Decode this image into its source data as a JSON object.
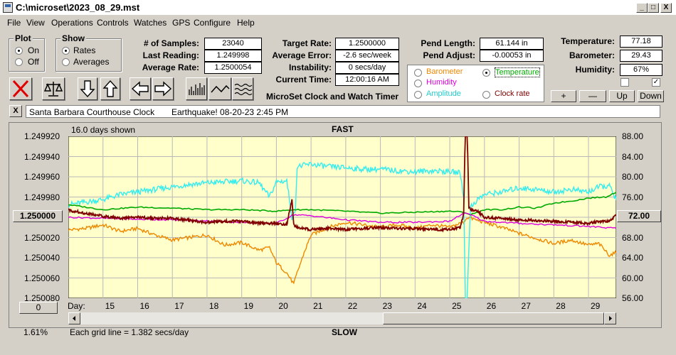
{
  "window": {
    "title": "C:\\microset\\2023_08_29.mst",
    "min_glyph": "_",
    "max_glyph": "□",
    "close_glyph": "X"
  },
  "menu": [
    "File",
    "View",
    "Operations",
    "Controls",
    "Watches",
    "GPS",
    "Configure",
    "Help"
  ],
  "plot_group": {
    "title": "Plot",
    "on": "On",
    "off": "Off",
    "selected": "On"
  },
  "show_group": {
    "title": "Show",
    "rates": "Rates",
    "averages": "Averages",
    "selected": "Rates"
  },
  "stats": {
    "samples_label": "# of Samples:",
    "samples": "23040",
    "last_label": "Last Reading:",
    "last": "1.249998",
    "avg_rate_label": "Average Rate:",
    "avg_rate": "1.2500054",
    "target_label": "Target Rate:",
    "target": "1.2500000",
    "avg_error_label": "Average Error:",
    "avg_error": "-2.6 sec/week",
    "instability_label": "Instability:",
    "instability": "0 secs/day",
    "current_time_label": "Current Time:",
    "current_time": "12:00:16 AM",
    "app_caption": "MicroSet Clock and Watch Timer"
  },
  "pendulum": {
    "length_label": "Pend Length:",
    "length": "61.144 in",
    "adjust_label": "Pend Adjust:",
    "adjust": "-0.00053 in"
  },
  "environment": {
    "temp_label": "Temperature:",
    "temp": "77.18",
    "baro_label": "Barometer:",
    "baro": "29.43",
    "humidity_label": "Humidity:",
    "humidity": "67%"
  },
  "overlay_options": {
    "barometer": "Barometer",
    "temperature": "Temperature",
    "humidity": "Humidity",
    "amplitude": "Amplitude",
    "clock_rate": "Clock rate",
    "selected": "Temperature"
  },
  "scale_buttons": {
    "plus": "+",
    "minus": "—",
    "up": "Up",
    "down": "Down"
  },
  "checkbox_mark": "✓",
  "note": {
    "close": "X",
    "clock_name": "Santa Barbara Courthouse Clock",
    "event": "Earthquake! 08-20-23 2:45 PM"
  },
  "colors": {
    "plot_bg": "#ffffcc",
    "grid": "#b8b8b8",
    "rate": "#800000",
    "temperature": "#00aa00",
    "humidity": "#dd00dd",
    "amplitude": "#33eeee",
    "barometer": "#ee8800"
  },
  "chart_data": {
    "type": "line",
    "days_shown": "16.0 days shown",
    "top_label": "FAST",
    "bottom_label": "SLOW",
    "x_label": "Day:",
    "x_ticks": [
      15,
      16,
      17,
      18,
      19,
      20,
      21,
      22,
      23,
      24,
      25,
      26,
      27,
      28,
      29
    ],
    "xlim": [
      14,
      29.8
    ],
    "left_ticks": [
      "1.249920",
      "1.249940",
      "1.249960",
      "1.249980",
      "1.250000",
      "1.250020",
      "1.250040",
      "1.250060",
      "1.250080"
    ],
    "left_center": "1.250000",
    "right_ticks": [
      "88.00",
      "84.00",
      "80.00",
      "76.00",
      "72.00",
      "68.00",
      "64.00",
      "60.00",
      "56.00"
    ],
    "right_center": "72.00",
    "bottom_left_value": "0",
    "left_footer": "1.61%",
    "grid_note": "Each grid line = 1.382 secs/day",
    "series": [
      {
        "key": "barometer",
        "x": [
          14,
          14.5,
          15,
          15.5,
          16,
          16.5,
          17,
          17.5,
          18,
          18.5,
          19,
          19.5,
          19.8,
          20,
          20.3,
          20.5,
          20.6,
          20.8,
          21,
          21.5,
          22,
          22.5,
          23,
          23.5,
          24,
          24.5,
          25,
          25.3,
          25.4,
          25.5,
          26,
          26.5,
          27,
          27.5,
          28,
          28.5,
          29,
          29.3,
          29.6,
          29.8
        ],
        "y": [
          69.5,
          69.8,
          70.5,
          69.2,
          69.8,
          68.5,
          67.5,
          68.0,
          68.5,
          66.5,
          67.0,
          65.5,
          66.0,
          63.0,
          61.0,
          58.8,
          61.0,
          65.0,
          68.5,
          70.0,
          71.0,
          70.5,
          70.0,
          70.5,
          69.8,
          70.5,
          70.0,
          70.8,
          71.0,
          72.0,
          71.0,
          70.0,
          68.8,
          67.8,
          66.8,
          67.5,
          66.5,
          66.8,
          64.5,
          65.0
        ]
      },
      {
        "key": "amplitude",
        "x": [
          14,
          14.5,
          15,
          15.5,
          16,
          16.5,
          17,
          17.5,
          18,
          18.5,
          19,
          19.5,
          19.8,
          20,
          20.3,
          20.45,
          20.5,
          20.55,
          20.6,
          21,
          21.5,
          22,
          22.5,
          23,
          23.5,
          24,
          24.5,
          25,
          25.3,
          25.4,
          25.45,
          25.5,
          25.55,
          25.6,
          25.8,
          26,
          26.5,
          27,
          27.5,
          28,
          28.5,
          29,
          29.3,
          29.6,
          29.8
        ],
        "y": [
          74.5,
          75.0,
          75.5,
          76.5,
          77.0,
          77.5,
          78.0,
          78.5,
          78.8,
          79.0,
          79.2,
          78.8,
          76.0,
          79.0,
          79.2,
          72.0,
          72.5,
          74.0,
          82.0,
          82.5,
          82.0,
          81.8,
          81.5,
          81.5,
          81.2,
          81.0,
          81.2,
          81.0,
          80.8,
          76.0,
          56.0,
          56.0,
          66.0,
          74.0,
          75.5,
          76.5,
          77.0,
          77.8,
          77.5,
          77.0,
          77.5,
          77.0,
          78.0,
          78.2,
          75.5
        ]
      },
      {
        "key": "temperature",
        "x": [
          14,
          15,
          16,
          17,
          18,
          19,
          20,
          20.5,
          21,
          22,
          23,
          24,
          25,
          25.4,
          25.6,
          26,
          26.5,
          27,
          27.5,
          28,
          28.5,
          29,
          29.5,
          29.8
        ],
        "y": [
          74.5,
          73.5,
          74.0,
          73.8,
          73.5,
          73.5,
          73.2,
          73.5,
          73.5,
          73.2,
          72.8,
          73.0,
          73.2,
          73.0,
          72.5,
          73.5,
          73.5,
          74.0,
          73.8,
          74.8,
          75.2,
          75.8,
          76.0,
          77.0
        ]
      },
      {
        "key": "humidity",
        "x": [
          14,
          15,
          16,
          17,
          18,
          19,
          20,
          20.5,
          21,
          22,
          23,
          24,
          25,
          25.4,
          25.6,
          26,
          27,
          28,
          29,
          29.8
        ],
        "y": [
          72.0,
          71.8,
          71.6,
          71.5,
          71.3,
          71.0,
          70.8,
          72.5,
          72.3,
          71.5,
          71.0,
          71.0,
          71.2,
          72.8,
          72.5,
          71.2,
          70.8,
          70.5,
          70.2,
          69.8
        ]
      },
      {
        "key": "rate",
        "x": [
          14,
          14.5,
          15,
          15.5,
          16,
          16.5,
          17,
          17.5,
          18,
          18.5,
          19,
          19.5,
          20,
          20.3,
          20.45,
          20.5,
          20.55,
          20.7,
          21,
          21.5,
          22,
          22.5,
          23,
          23.5,
          24,
          24.5,
          25,
          25.3,
          25.4,
          25.45,
          25.5,
          25.55,
          25.6,
          25.8,
          26,
          26.5,
          27,
          27.5,
          28,
          28.5,
          29,
          29.3,
          29.6,
          29.8
        ],
        "y": [
          1.249993,
          1.249996,
          1.249999,
          1.250001,
          1.25,
          1.250001,
          1.250001,
          1.250003,
          1.250005,
          1.250004,
          1.250004,
          1.250006,
          1.250006,
          1.250007,
          1.249983,
          1.250007,
          1.250009,
          1.250011,
          1.250012,
          1.250011,
          1.250012,
          1.250011,
          1.25001,
          1.250011,
          1.250011,
          1.250012,
          1.250012,
          1.25001,
          1.249997,
          1.24991,
          1.24991,
          1.24999,
          1.249992,
          1.249994,
          1.25,
          1.250001,
          1.250003,
          1.250003,
          1.250004,
          1.250005,
          1.250006,
          1.250004,
          1.250004,
          1.249998
        ]
      }
    ]
  }
}
